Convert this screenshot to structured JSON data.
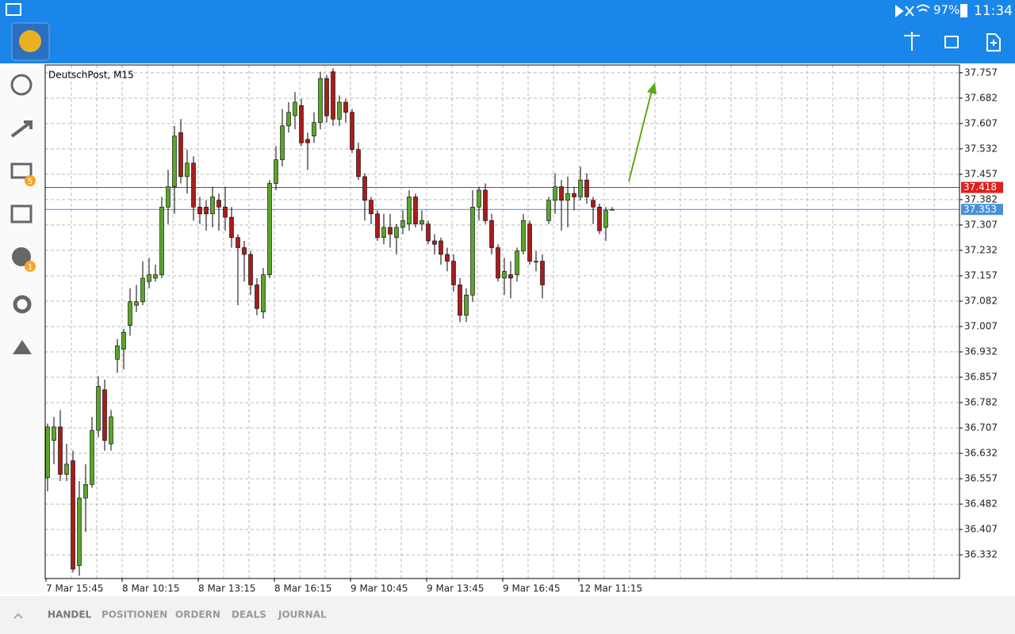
{
  "status_bar": {
    "battery": "97%",
    "time": "11:34"
  },
  "sidebar_badges": [
    "5",
    "1"
  ],
  "tabs": [
    "HANDEL",
    "POSITIONEN",
    "ORDERN",
    "DEALS",
    "JOURNAL"
  ],
  "chart_data": {
    "type": "candlestick",
    "title": "DeutschPost, M15",
    "categories": [
      "7 Mar 15:45",
      null,
      null,
      null,
      null,
      null,
      null,
      null,
      null,
      null,
      null,
      null,
      "8 Mar 10:15",
      null,
      null,
      null,
      null,
      null,
      null,
      null,
      null,
      null,
      null,
      null,
      "8 Mar 13:15",
      null,
      null,
      null,
      null,
      null,
      null,
      null,
      null,
      null,
      null,
      null,
      "8 Mar 16:15",
      null,
      null,
      null,
      null,
      null,
      null,
      null,
      null,
      null,
      null,
      null,
      "9 Mar 10:45",
      null,
      null,
      null,
      null,
      null,
      null,
      null,
      null,
      null,
      null,
      null,
      "9 Mar 13:45",
      null,
      null,
      null,
      null,
      null,
      null,
      null,
      null,
      null,
      null,
      null,
      "9 Mar 16:45",
      null,
      null,
      null,
      null,
      null,
      null,
      null,
      null,
      null,
      null,
      null,
      "12 Mar 11:15",
      null,
      null,
      null,
      null,
      null
    ],
    "open": [
      36.56,
      36.67,
      36.71,
      36.57,
      36.61,
      36.3,
      36.5,
      36.54,
      36.7,
      36.82,
      36.66,
      36.91,
      36.94,
      37.01,
      37.07,
      37.08,
      37.14,
      37.15,
      37.16,
      37.36,
      37.42,
      37.58,
      37.45,
      37.49,
      37.36,
      37.36,
      37.34,
      37.38,
      37.36,
      37.33,
      37.27,
      37.24,
      37.22,
      37.13,
      37.05,
      37.16,
      37.43,
      37.5,
      37.6,
      37.63,
      37.66,
      37.56,
      37.57,
      37.61,
      37.74,
      37.76,
      37.62,
      37.67,
      37.64,
      37.53,
      37.45,
      37.38,
      37.34,
      37.27,
      37.3,
      37.27,
      37.3,
      37.31,
      37.39,
      37.31,
      37.31,
      37.26,
      37.26,
      37.22,
      37.2,
      37.13,
      37.04,
      37.1,
      37.36,
      37.41,
      37.32,
      37.24,
      37.15,
      37.16,
      37.16,
      37.23,
      37.31,
      37.2,
      37.2,
      37.32,
      37.38,
      37.42,
      37.38,
      37.4,
      37.39,
      37.44,
      37.38,
      37.36,
      37.3,
      37.352
    ],
    "high": [
      36.72,
      36.74,
      36.76,
      36.66,
      36.64,
      36.55,
      36.6,
      36.74,
      36.86,
      36.85,
      36.76,
      36.97,
      37.0,
      37.12,
      37.13,
      37.2,
      37.21,
      37.19,
      37.39,
      37.47,
      37.6,
      37.62,
      37.53,
      37.51,
      37.39,
      37.38,
      37.42,
      37.4,
      37.42,
      37.36,
      37.28,
      37.26,
      37.23,
      37.15,
      37.18,
      37.44,
      37.54,
      37.65,
      37.67,
      37.7,
      37.68,
      37.58,
      37.64,
      37.76,
      37.75,
      37.77,
      37.69,
      37.68,
      37.65,
      37.55,
      37.46,
      37.39,
      37.35,
      37.34,
      37.34,
      37.31,
      37.35,
      37.41,
      37.4,
      37.35,
      37.32,
      37.28,
      37.27,
      37.24,
      37.22,
      37.15,
      37.12,
      37.41,
      37.42,
      37.43,
      37.34,
      37.25,
      37.21,
      37.2,
      37.24,
      37.34,
      37.32,
      37.23,
      37.22,
      37.39,
      37.46,
      37.44,
      37.45,
      37.42,
      37.48,
      37.46,
      37.39,
      37.37,
      37.36,
      37.36
    ],
    "low": [
      36.52,
      36.6,
      36.55,
      36.55,
      36.28,
      36.27,
      36.4,
      36.53,
      36.68,
      36.64,
      36.64,
      36.87,
      36.88,
      36.98,
      37.05,
      37.07,
      37.12,
      37.14,
      37.15,
      37.31,
      37.34,
      37.43,
      37.4,
      37.32,
      37.31,
      37.29,
      37.3,
      37.29,
      37.29,
      37.24,
      37.07,
      37.14,
      37.1,
      37.04,
      37.03,
      37.15,
      37.41,
      37.48,
      37.58,
      37.59,
      37.54,
      37.47,
      37.55,
      37.59,
      37.61,
      37.6,
      37.6,
      37.61,
      37.52,
      37.44,
      37.32,
      37.31,
      37.26,
      37.25,
      37.24,
      37.22,
      37.28,
      37.29,
      37.3,
      37.29,
      37.25,
      37.22,
      37.19,
      37.17,
      37.11,
      37.02,
      37.02,
      37.08,
      37.32,
      37.31,
      37.22,
      37.14,
      37.1,
      37.09,
      37.14,
      37.22,
      37.19,
      37.17,
      37.09,
      37.31,
      37.34,
      37.29,
      37.3,
      37.35,
      37.38,
      37.37,
      37.31,
      37.28,
      37.26,
      37.35
    ],
    "close": [
      36.71,
      36.71,
      36.57,
      36.6,
      36.29,
      36.5,
      36.54,
      36.7,
      36.83,
      36.67,
      36.74,
      36.95,
      36.99,
      37.08,
      37.08,
      37.15,
      37.16,
      37.16,
      37.36,
      37.42,
      37.57,
      37.45,
      37.49,
      37.36,
      37.34,
      37.34,
      37.39,
      37.36,
      37.33,
      37.27,
      37.24,
      37.22,
      37.13,
      37.06,
      37.16,
      37.43,
      37.5,
      37.6,
      37.64,
      37.67,
      37.55,
      37.55,
      37.61,
      37.74,
      37.63,
      37.62,
      37.67,
      37.64,
      37.53,
      37.45,
      37.38,
      37.34,
      37.27,
      37.3,
      37.28,
      37.3,
      37.32,
      37.39,
      37.31,
      37.32,
      37.26,
      37.25,
      37.22,
      37.2,
      37.13,
      37.04,
      37.1,
      37.36,
      37.41,
      37.32,
      37.24,
      37.15,
      37.17,
      37.15,
      37.23,
      37.32,
      37.2,
      37.2,
      37.13,
      37.38,
      37.42,
      37.38,
      37.4,
      37.39,
      37.44,
      37.39,
      37.36,
      37.29,
      37.35,
      37.353
    ],
    "up_color": "#5aa52a",
    "down_color": "#a81c1c",
    "ylim": [
      36.262,
      37.78
    ],
    "yticks": [
      37.757,
      37.682,
      37.607,
      37.532,
      37.457,
      37.382,
      37.307,
      37.232,
      37.157,
      37.082,
      37.007,
      36.932,
      36.857,
      36.782,
      36.707,
      36.632,
      36.557,
      36.482,
      36.407,
      36.332
    ],
    "grid": true,
    "price_lines": [
      {
        "value": 37.418,
        "color": "#e02020"
      },
      {
        "value": 37.353,
        "color": "#4a90d9"
      }
    ]
  }
}
